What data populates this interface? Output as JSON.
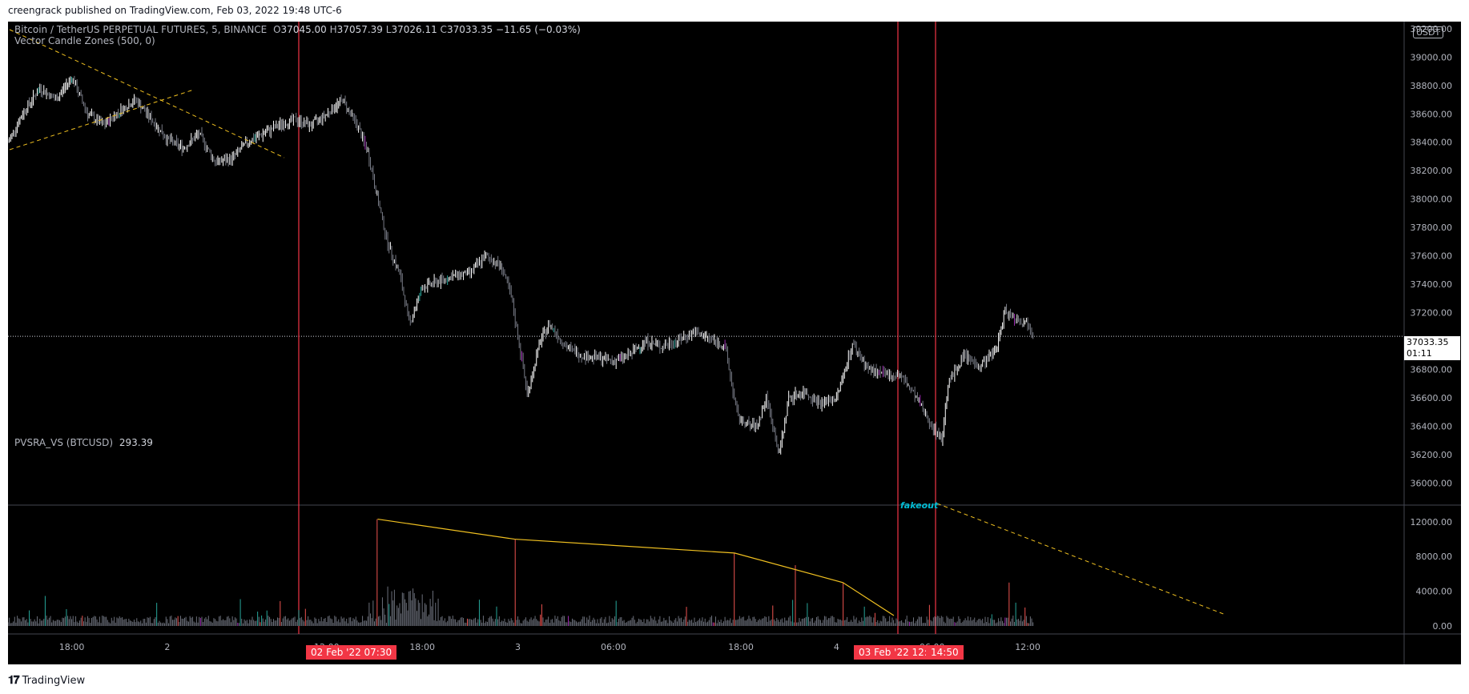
{
  "header": {
    "published_by": "creengrack published on TradingView.com, Feb 03, 2022 19:48 UTC-6"
  },
  "legend": {
    "symbol": "Bitcoin / TetherUS PERPETUAL FUTURES, 5, BINANCE",
    "o_label": "O",
    "o_value": "37045.00",
    "h_label": "H",
    "h_value": "37057.39",
    "l_label": "L",
    "l_value": "37026.11",
    "c_label": "C",
    "c_value": "37033.35",
    "change": "−11.65 (−0.03%)",
    "indicator": "Vector Candle Zones (500, 0)"
  },
  "volume_legend": {
    "name": "PVSRA_VS (BTCUSD)",
    "value": "293.39"
  },
  "annotation": {
    "fakeout": "fakeout"
  },
  "footer": {
    "brand": "TradingView"
  },
  "colors": {
    "background": "#000000",
    "up": "#ffffff",
    "down": "#787b86",
    "accent": "#f23645",
    "trend": "#f0c020",
    "volume_default": "#6b6f7a",
    "volume_climax_up": "#26a69a",
    "volume_climax_down": "#ef5350",
    "volume_vector": "#9c27b0"
  },
  "chart_data": [
    {
      "type": "candlestick",
      "title": "Bitcoin / TetherUS PERPETUAL FUTURES, 5, BINANCE",
      "y_unit": "USDT",
      "y_ticks": [
        "39200.00",
        "39000.00",
        "38800.00",
        "38600.00",
        "38400.00",
        "38200.00",
        "38000.00",
        "37800.00",
        "37600.00",
        "37400.00",
        "37200.00",
        "36800.00",
        "36600.00",
        "36400.00",
        "36200.00",
        "36000.00"
      ],
      "ylim": [
        35900,
        39200
      ],
      "x_ticks": [
        "18:00",
        "2",
        "12:00",
        "18:00",
        "3",
        "06:00",
        "18:00",
        "4",
        "06:00",
        "12:00"
      ],
      "x_range_hours": [
        0,
        58
      ],
      "last_price": "37033.35",
      "countdown": "01:11",
      "price_path": [
        [
          0,
          38400
        ],
        [
          1,
          38620
        ],
        [
          2,
          38780
        ],
        [
          3,
          38700
        ],
        [
          4,
          38860
        ],
        [
          5,
          38600
        ],
        [
          6,
          38520
        ],
        [
          7,
          38620
        ],
        [
          8,
          38700
        ],
        [
          9,
          38560
        ],
        [
          10,
          38420
        ],
        [
          11,
          38360
        ],
        [
          12,
          38460
        ],
        [
          13,
          38260
        ],
        [
          14,
          38280
        ],
        [
          15,
          38400
        ],
        [
          16,
          38460
        ],
        [
          17,
          38520
        ],
        [
          18,
          38560
        ],
        [
          19,
          38520
        ],
        [
          20,
          38600
        ],
        [
          21,
          38700
        ],
        [
          22,
          38500
        ],
        [
          22.6,
          38320
        ],
        [
          23.2,
          38000
        ],
        [
          23.8,
          37700
        ],
        [
          24.6,
          37460
        ],
        [
          25.2,
          37120
        ],
        [
          26,
          37380
        ],
        [
          27,
          37420
        ],
        [
          28,
          37460
        ],
        [
          29,
          37480
        ],
        [
          30,
          37600
        ],
        [
          31,
          37520
        ],
        [
          31.6,
          37300
        ],
        [
          32.2,
          36900
        ],
        [
          32.6,
          36620
        ],
        [
          33.4,
          37000
        ],
        [
          34,
          37120
        ],
        [
          35,
          36960
        ],
        [
          36,
          36900
        ],
        [
          37,
          36880
        ],
        [
          38,
          36860
        ],
        [
          39,
          36900
        ],
        [
          40,
          37000
        ],
        [
          41,
          36960
        ],
        [
          42,
          37000
        ],
        [
          43,
          37060
        ],
        [
          44,
          37020
        ],
        [
          45,
          36960
        ],
        [
          45.8,
          36460
        ],
        [
          46.6,
          36400
        ],
        [
          47,
          36400
        ],
        [
          47.6,
          36600
        ],
        [
          48.4,
          36200
        ],
        [
          49,
          36600
        ],
        [
          50,
          36640
        ],
        [
          51,
          36560
        ],
        [
          52,
          36600
        ],
        [
          53,
          36980
        ],
        [
          54,
          36800
        ],
        [
          55,
          36760
        ],
        [
          56,
          36760
        ],
        [
          57,
          36600
        ],
        [
          58,
          36400
        ],
        [
          58.6,
          36300
        ],
        [
          59,
          36700
        ],
        [
          60,
          36900
        ],
        [
          61,
          36820
        ],
        [
          62,
          36940
        ],
        [
          62.6,
          37220
        ],
        [
          63.2,
          37160
        ],
        [
          64,
          37120
        ],
        [
          64.4,
          37060
        ]
      ],
      "hours_shown": [
        0,
        66
      ],
      "vertical_lines": [
        "02 Feb '22  07:30",
        "03 Feb '22  12:50",
        "14:50"
      ],
      "trendlines": 3
    },
    {
      "type": "bar",
      "title": "PVSRA_VS (BTCUSD)",
      "last_value": "293.39",
      "y_ticks": [
        "12000.00",
        "8000.00",
        "4000.00",
        "0.00"
      ],
      "ylim": [
        0,
        13000
      ],
      "spikes": [
        [
          23.2,
          12300
        ],
        [
          31.8,
          10000
        ],
        [
          45.6,
          8400
        ],
        [
          49.4,
          7000
        ],
        [
          52.4,
          5000
        ],
        [
          54.4,
          1500
        ],
        [
          62.8,
          5000
        ]
      ],
      "volume_trend": [
        [
          23.2,
          12300
        ],
        [
          31.8,
          10000
        ],
        [
          45.6,
          8400
        ],
        [
          52.4,
          5000
        ],
        [
          55.6,
          1200
        ]
      ]
    }
  ]
}
